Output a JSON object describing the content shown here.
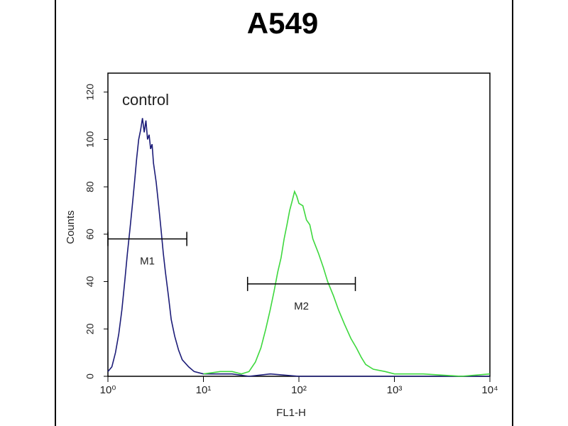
{
  "chart_data": {
    "type": "line",
    "title": "A549",
    "xlabel": "FL1-H",
    "ylabel": "Counts",
    "xscale": "log",
    "xlim": [
      1,
      10000
    ],
    "ylim": [
      0,
      128
    ],
    "xticks": [
      {
        "value": 1,
        "label": "10⁰"
      },
      {
        "value": 10,
        "label": "10¹"
      },
      {
        "value": 100,
        "label": "10²"
      },
      {
        "value": 1000,
        "label": "10³"
      },
      {
        "value": 10000,
        "label": "10⁴"
      }
    ],
    "yticks": [
      0,
      20,
      40,
      60,
      80,
      100,
      120
    ],
    "series": [
      {
        "name": "control",
        "color": "#1c1c78",
        "x": [
          1.0,
          1.1,
          1.2,
          1.3,
          1.4,
          1.5,
          1.6,
          1.7,
          1.8,
          1.9,
          2.0,
          2.1,
          2.2,
          2.3,
          2.4,
          2.5,
          2.6,
          2.7,
          2.8,
          2.9,
          3.0,
          3.2,
          3.4,
          3.6,
          3.8,
          4.0,
          4.3,
          4.6,
          5.0,
          5.5,
          6.0,
          7.0,
          8.0,
          10,
          15,
          20,
          30,
          50,
          100,
          1000,
          10000
        ],
        "values": [
          2,
          4,
          10,
          18,
          28,
          40,
          52,
          62,
          72,
          82,
          92,
          100,
          104,
          109,
          103,
          108,
          100,
          102,
          96,
          98,
          90,
          82,
          72,
          62,
          52,
          44,
          34,
          24,
          17,
          11,
          7,
          4,
          2,
          1,
          1,
          1,
          0,
          1,
          0,
          0,
          0
        ]
      },
      {
        "color": "#3ed83e",
        "x": [
          10,
          15,
          20,
          25,
          30,
          35,
          40,
          45,
          50,
          55,
          60,
          65,
          70,
          75,
          80,
          85,
          90,
          95,
          100,
          110,
          120,
          130,
          140,
          160,
          180,
          200,
          230,
          260,
          300,
          350,
          400,
          450,
          500,
          600,
          800,
          1000,
          2000,
          5000,
          10000
        ],
        "values": [
          1,
          2,
          2,
          1,
          2,
          6,
          12,
          20,
          28,
          36,
          44,
          50,
          58,
          64,
          70,
          74,
          78,
          76,
          73,
          72,
          66,
          64,
          58,
          52,
          46,
          40,
          34,
          28,
          22,
          16,
          12,
          8,
          5,
          3,
          2,
          1,
          1,
          0,
          1
        ]
      }
    ],
    "markers": [
      {
        "label": "M1",
        "range": [
          1,
          6.7
        ],
        "y": 58
      },
      {
        "label": "M2",
        "range": [
          29,
          390
        ],
        "y": 39
      }
    ]
  }
}
